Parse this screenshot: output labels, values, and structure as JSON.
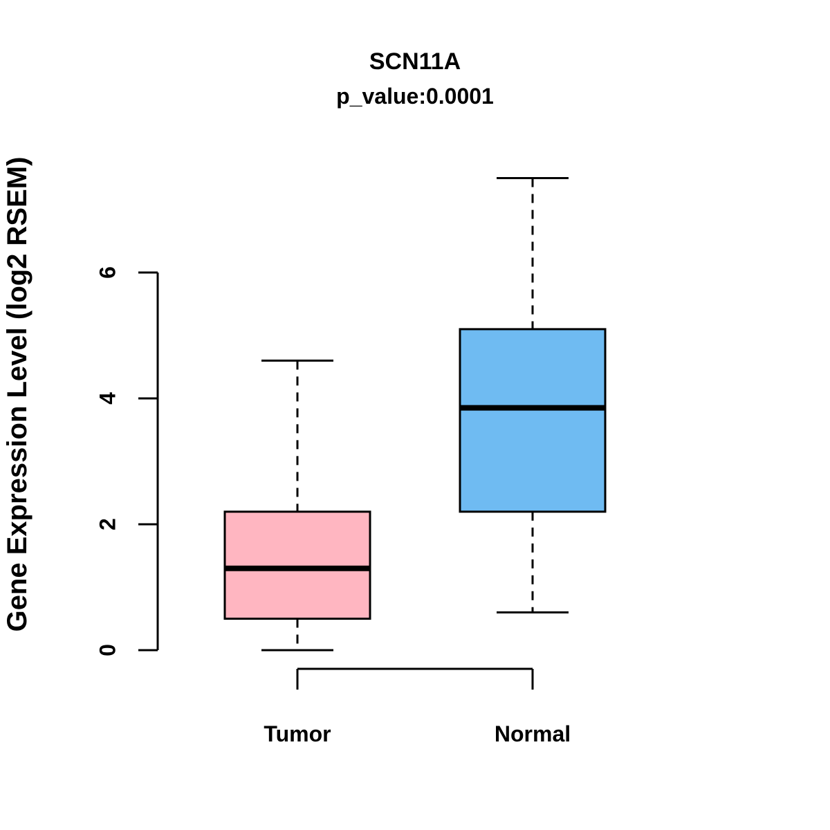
{
  "chart_data": {
    "type": "boxplot",
    "title": "SCN11A",
    "subtitle": "p_value:0.0001",
    "ylabel": "Gene Expression Level (log2 RSEM)",
    "xlabel": "",
    "categories": [
      "Tumor",
      "Normal"
    ],
    "yticks": [
      0,
      2,
      4,
      6
    ],
    "ylim": [
      -0.5,
      7.7
    ],
    "grid": false,
    "legend": "none",
    "series": [
      {
        "name": "Tumor",
        "color": "#FFB6C1",
        "lower_whisker": 0.0,
        "q1": 0.5,
        "median": 1.3,
        "q3": 2.2,
        "upper_whisker": 4.6
      },
      {
        "name": "Normal",
        "color": "#6FBBF2",
        "lower_whisker": 0.6,
        "q1": 2.2,
        "median": 3.85,
        "q3": 5.1,
        "upper_whisker": 7.5
      }
    ],
    "colors": {
      "box_border": "#000000",
      "axis": "#000000",
      "tumor_fill": "#FFB6C1",
      "normal_fill": "#6FBBF2"
    }
  }
}
